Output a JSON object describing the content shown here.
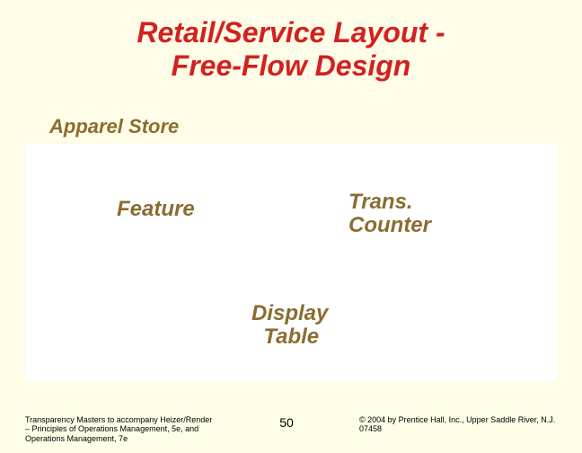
{
  "title_line1": "Retail/Service Layout -",
  "title_line2": "Free-Flow Design",
  "subtitle": "Apparel Store",
  "labels": {
    "feature": "Feature",
    "trans_line1": "Trans.",
    "trans_line2": "Counter",
    "display_line1": "Display",
    "display_line2": "Table"
  },
  "footer": {
    "left": "Transparency Masters to accompany Heizer/Render – Principles of Operations Management, 5e, and Operations Management, 7e",
    "page": "50",
    "right": "© 2004 by Prentice Hall, Inc., Upper Saddle River, N.J. 07458"
  },
  "colors": {
    "background": "#fffde7",
    "title": "#d32020",
    "label": "#8a6d30",
    "band": "#ffffff"
  }
}
